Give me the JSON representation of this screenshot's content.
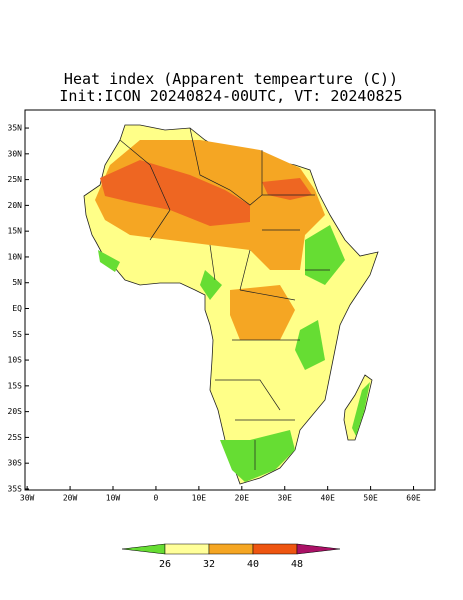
{
  "title": "Heat index (Apparent tempearture (C))",
  "subtitle": "Init:ICON 20240824-00UTC, VT: 20240825",
  "map": {
    "xlim": [
      -30.5,
      65
    ],
    "ylim": [
      -35.2,
      38.5
    ],
    "lat_ticks": [
      {
        "value": 35,
        "label": "35N"
      },
      {
        "value": 30,
        "label": "30N"
      },
      {
        "value": 25,
        "label": "25N"
      },
      {
        "value": 20,
        "label": "20N"
      },
      {
        "value": 15,
        "label": "15N"
      },
      {
        "value": 10,
        "label": "10N"
      },
      {
        "value": 5,
        "label": "5N"
      },
      {
        "value": 0,
        "label": "EQ"
      },
      {
        "value": -5,
        "label": "5S"
      },
      {
        "value": -10,
        "label": "10S"
      },
      {
        "value": -15,
        "label": "15S"
      },
      {
        "value": -20,
        "label": "20S"
      },
      {
        "value": -25,
        "label": "25S"
      },
      {
        "value": -30,
        "label": "30S"
      },
      {
        "value": -35,
        "label": "35S"
      }
    ],
    "lon_ticks": [
      {
        "value": -30,
        "label": "30W"
      },
      {
        "value": -20,
        "label": "20W"
      },
      {
        "value": -10,
        "label": "10W"
      },
      0,
      {
        "value": 10,
        "label": "10E"
      },
      {
        "value": 20,
        "label": "20E"
      },
      {
        "value": 30,
        "label": "30E"
      },
      {
        "value": 40,
        "label": "40E"
      },
      {
        "value": 50,
        "label": "50E"
      },
      {
        "value": 60,
        "label": "60E"
      }
    ]
  },
  "colorbar": {
    "levels": [
      26,
      32,
      40,
      48
    ],
    "colors": [
      "#66dd33",
      "#ffff99",
      "#f5a623",
      "#ee5511",
      "#aa1166"
    ]
  }
}
